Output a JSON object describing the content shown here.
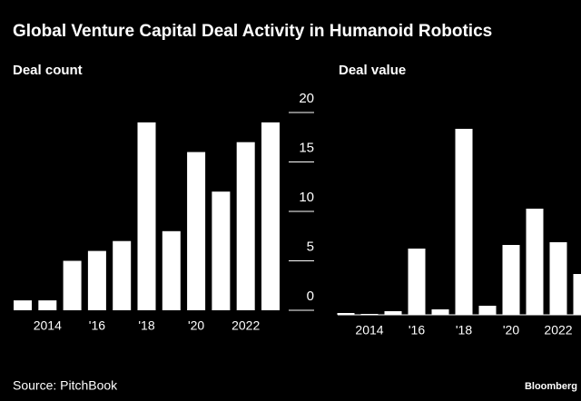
{
  "title": "Global Venture Capital Deal Activity in Humanoid Robotics",
  "source": "Source: PitchBook",
  "brand": "Bloomberg",
  "chart_data": [
    {
      "type": "bar",
      "title": "Deal count",
      "categories": [
        null,
        "2014",
        null,
        "'16",
        null,
        "'18",
        null,
        "'20",
        null,
        "2022",
        null
      ],
      "values": [
        1,
        1,
        5,
        6,
        7,
        19,
        8,
        16,
        12,
        17,
        19
      ],
      "color": "#ffffff",
      "ylim": [
        0,
        20
      ],
      "yticks": [
        0,
        5,
        10,
        15,
        20
      ]
    },
    {
      "type": "bar",
      "title": "Deal value",
      "categories": [
        null,
        "2014",
        null,
        "'16",
        null,
        "'18",
        null,
        "'20",
        null,
        "2022",
        null
      ],
      "values": [
        2,
        1,
        4,
        73,
        6,
        205,
        10,
        77,
        117,
        80,
        45
      ],
      "color": "#ffffff",
      "ylim": [
        0,
        240
      ]
    }
  ]
}
